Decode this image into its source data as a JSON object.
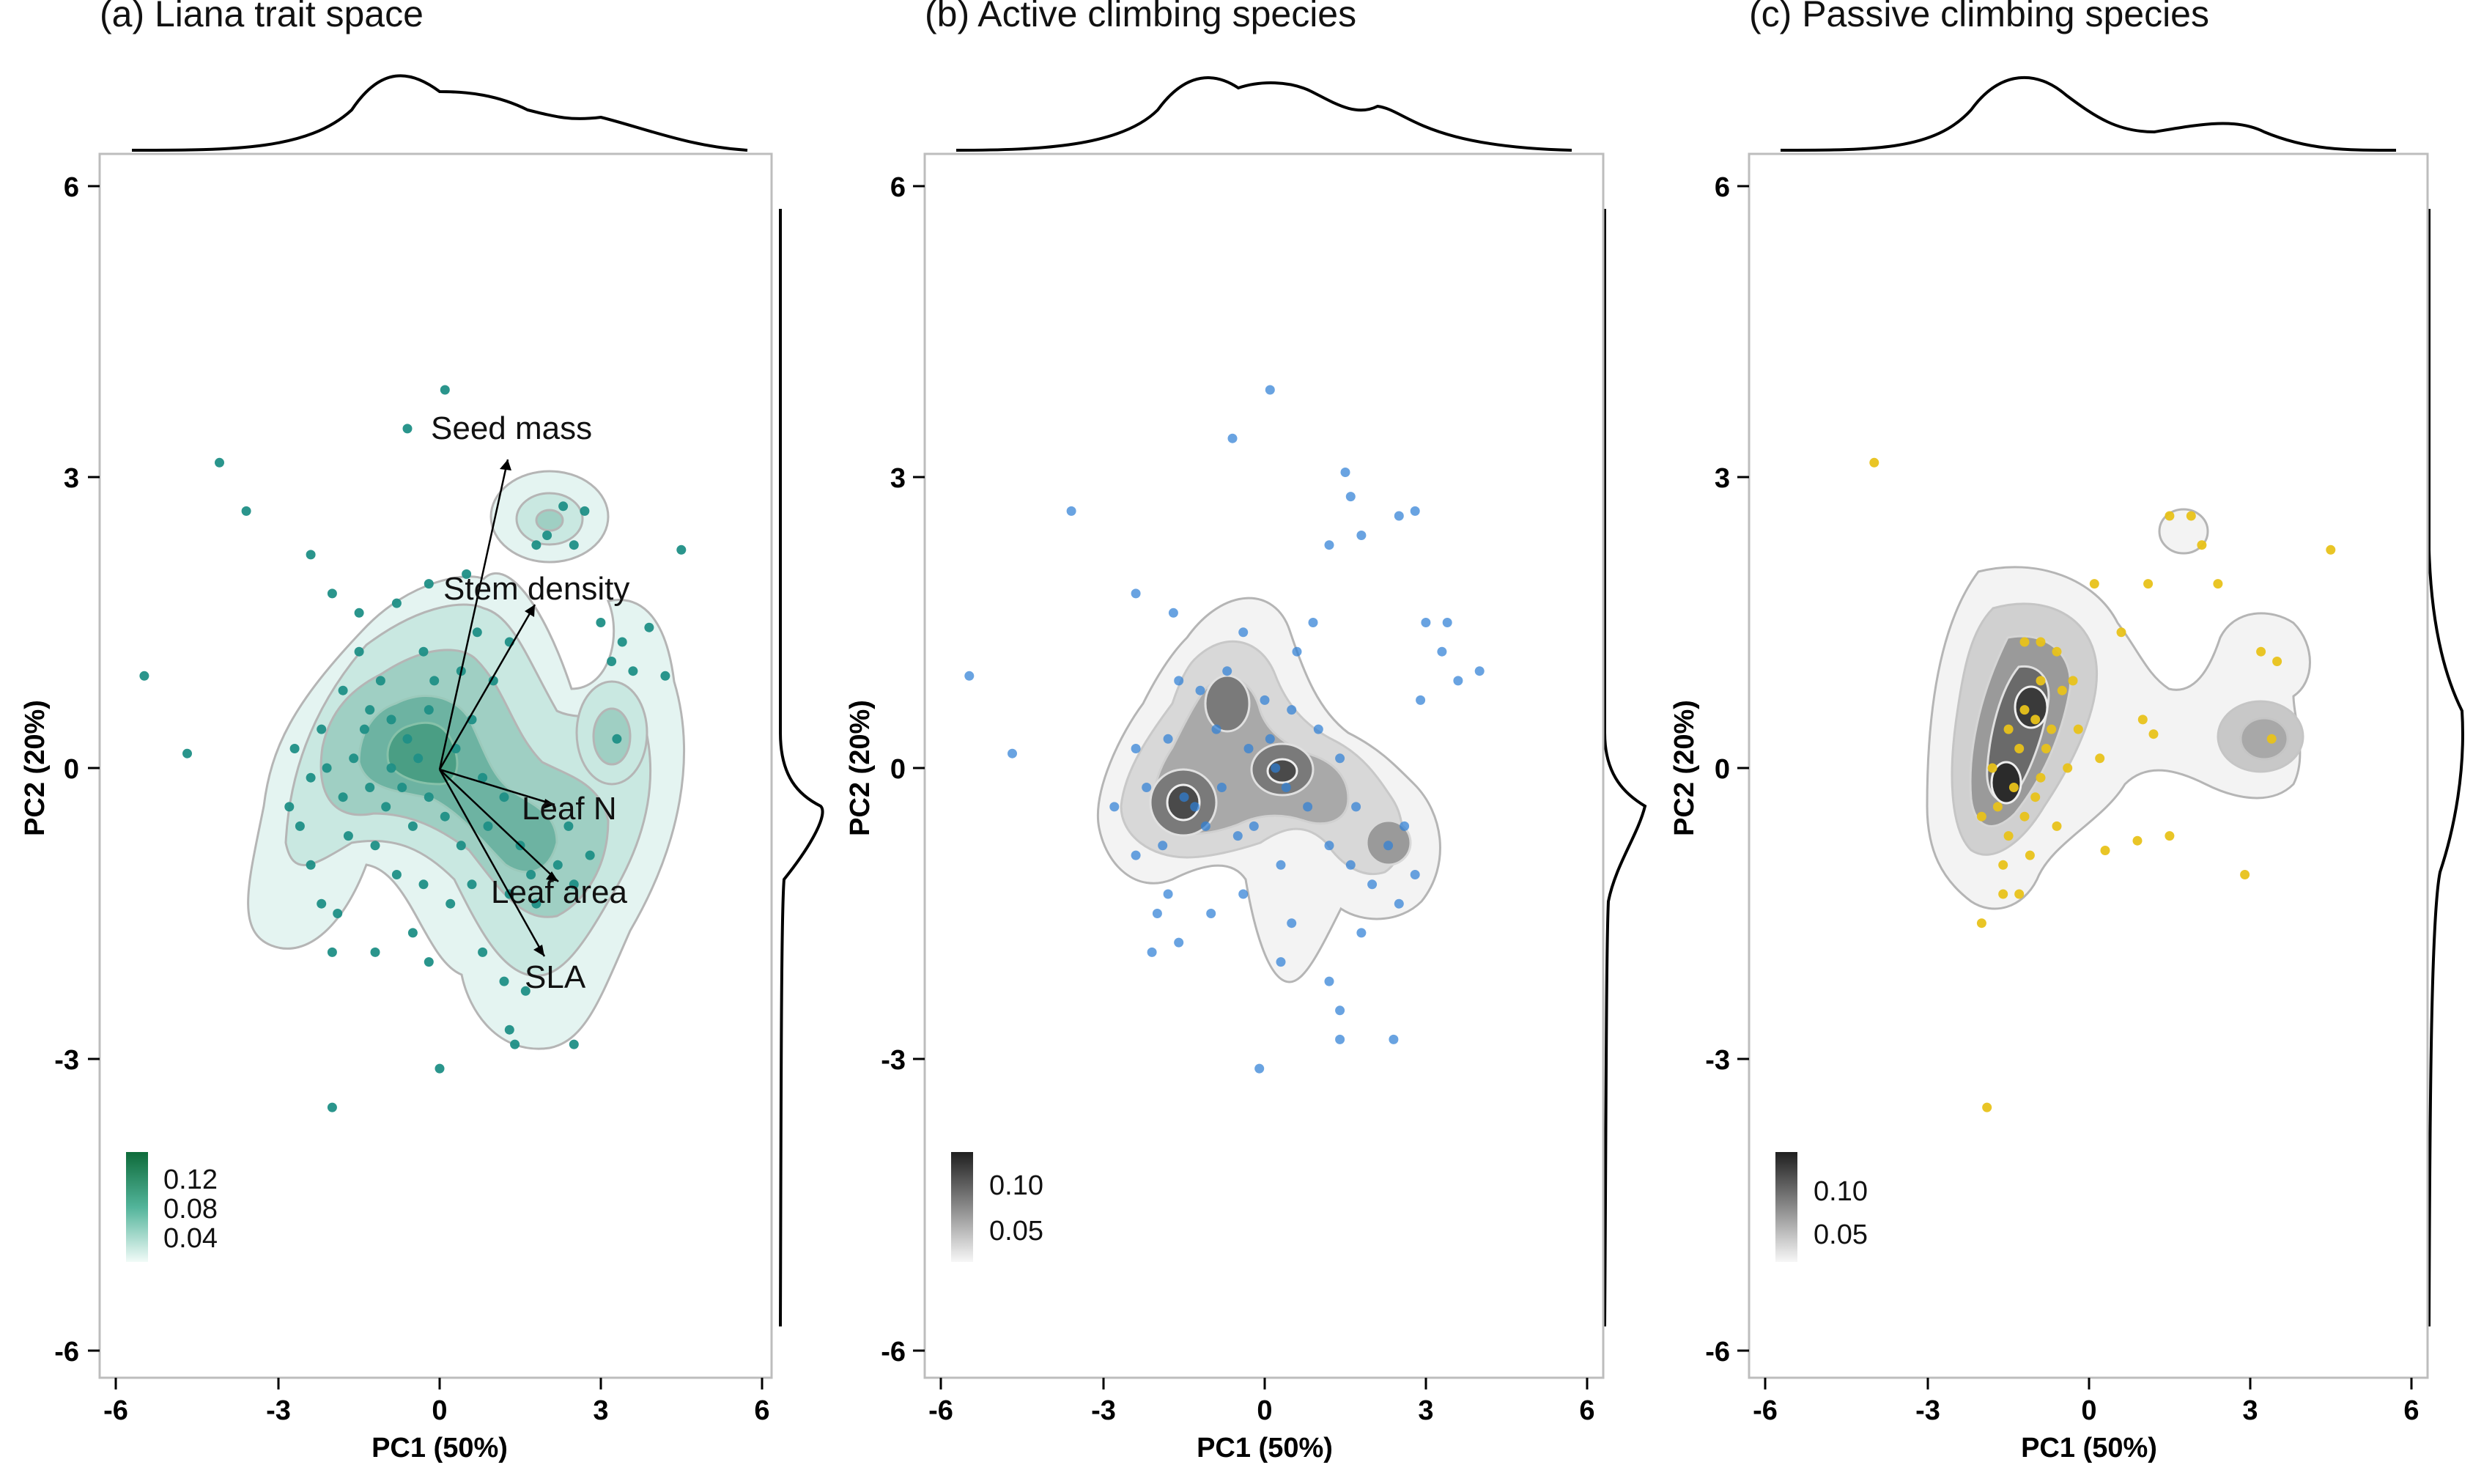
{
  "figure": {
    "panels": [
      {
        "id": "a",
        "title": "(a)  Liana trait space"
      },
      {
        "id": "b",
        "title": "(b)  Active climbing species"
      },
      {
        "id": "c",
        "title": "(c)  Passive climbing species"
      }
    ],
    "xlabel": "PC1 (50%)",
    "ylabel": "PC2 (20%)",
    "ticks": [
      "-6",
      "-3",
      "0",
      "3",
      "6"
    ]
  },
  "colors": {
    "panel_a_points": "#1f8f86",
    "panel_b_points": "#2f7fd6",
    "panel_c_points": "#e8c21a",
    "density_green": "#0e6b3a",
    "density_gray": "#2b2b2b",
    "panel_border": "#bdbdbd",
    "contour": "#b5b5b5"
  },
  "chart_data": [
    {
      "type": "scatter",
      "panel": "(a)  Liana trait space",
      "xlabel": "PC1 (50%)",
      "ylabel": "PC2 (20%)",
      "xlim": [
        -6.3,
        6
      ],
      "ylim": [
        -6.3,
        6.3
      ],
      "grid": false,
      "density_contours": true,
      "legend": {
        "position": "bottom-left",
        "labels": [
          "0.12",
          "0.08",
          "0.04"
        ]
      },
      "loadings": [
        {
          "label": "Seed mass",
          "x": 1.3,
          "y": 3.2
        },
        {
          "label": "Stem density",
          "x": 1.8,
          "y": 1.7
        },
        {
          "label": "Leaf N",
          "x": 2.1,
          "y": -0.5
        },
        {
          "label": "Leaf area",
          "x": 2.2,
          "y": -1.15
        },
        {
          "label": "SLA",
          "x": 2.0,
          "y": -1.9
        }
      ],
      "points": [
        [
          0.1,
          3.9
        ],
        [
          -0.6,
          3.5
        ],
        [
          -4.1,
          3.15
        ],
        [
          -3.6,
          2.65
        ],
        [
          2.3,
          2.7
        ],
        [
          2.7,
          2.65
        ],
        [
          2.0,
          2.4
        ],
        [
          2.5,
          2.3
        ],
        [
          -2.4,
          2.2
        ],
        [
          4.5,
          2.25
        ],
        [
          1.8,
          2.3
        ],
        [
          -2.0,
          1.8
        ],
        [
          -1.5,
          1.6
        ],
        [
          -0.8,
          1.7
        ],
        [
          -0.2,
          1.9
        ],
        [
          0.5,
          2.0
        ],
        [
          3.0,
          1.5
        ],
        [
          3.4,
          1.3
        ],
        [
          3.2,
          1.1
        ],
        [
          3.6,
          1.0
        ],
        [
          4.2,
          0.95
        ],
        [
          3.9,
          1.45
        ],
        [
          -5.5,
          0.95
        ],
        [
          3.3,
          0.3
        ],
        [
          -4.7,
          0.15
        ],
        [
          -2.8,
          -0.4
        ],
        [
          -2.4,
          -1.0
        ],
        [
          -2.2,
          -1.4
        ],
        [
          -1.9,
          -1.5
        ],
        [
          -2.0,
          -1.9
        ],
        [
          -1.2,
          -1.9
        ],
        [
          -0.5,
          -1.7
        ],
        [
          -0.2,
          -2.0
        ],
        [
          0.8,
          -1.9
        ],
        [
          1.2,
          -2.2
        ],
        [
          1.6,
          -2.3
        ],
        [
          1.3,
          -2.7
        ],
        [
          1.4,
          -2.85
        ],
        [
          2.5,
          -2.85
        ],
        [
          0.0,
          -3.1
        ],
        [
          -2.0,
          -3.5
        ],
        [
          -2.6,
          -0.6
        ],
        [
          -2.2,
          0.4
        ],
        [
          -1.8,
          0.8
        ],
        [
          -1.5,
          1.2
        ],
        [
          -1.1,
          0.9
        ],
        [
          -0.9,
          0.5
        ],
        [
          -0.6,
          0.3
        ],
        [
          -0.4,
          0.1
        ],
        [
          -0.2,
          0.6
        ],
        [
          -0.7,
          -0.2
        ],
        [
          -1.0,
          -0.4
        ],
        [
          -1.3,
          -0.2
        ],
        [
          -1.6,
          0.1
        ],
        [
          -1.8,
          -0.3
        ],
        [
          -2.1,
          0.0
        ],
        [
          -0.5,
          -0.6
        ],
        [
          -0.2,
          -0.3
        ],
        [
          0.1,
          -0.5
        ],
        [
          0.3,
          0.2
        ],
        [
          0.6,
          0.5
        ],
        [
          0.8,
          -0.1
        ],
        [
          0.4,
          -0.8
        ],
        [
          0.9,
          -0.6
        ],
        [
          1.2,
          -0.3
        ],
        [
          1.5,
          -0.8
        ],
        [
          1.7,
          -1.1
        ],
        [
          1.3,
          -1.3
        ],
        [
          1.8,
          -1.4
        ],
        [
          2.2,
          -1.0
        ],
        [
          2.5,
          -1.2
        ],
        [
          2.8,
          -0.9
        ],
        [
          2.4,
          -0.6
        ],
        [
          1.0,
          0.9
        ],
        [
          1.3,
          1.3
        ],
        [
          0.7,
          1.4
        ],
        [
          -0.3,
          1.2
        ],
        [
          -1.3,
          0.6
        ],
        [
          -2.4,
          -0.1
        ],
        [
          -2.7,
          0.2
        ],
        [
          -1.2,
          -0.8
        ],
        [
          -0.8,
          -1.1
        ],
        [
          -0.3,
          -1.2
        ],
        [
          0.2,
          -1.4
        ],
        [
          0.6,
          -1.2
        ],
        [
          -1.7,
          -0.7
        ],
        [
          -1.4,
          0.4
        ],
        [
          -0.9,
          0.0
        ],
        [
          -0.1,
          0.9
        ],
        [
          0.4,
          1.0
        ]
      ]
    },
    {
      "type": "scatter",
      "panel": "(b)  Active climbing species",
      "xlabel": "PC1 (50%)",
      "ylabel": "PC2 (20%)",
      "xlim": [
        -6.3,
        6
      ],
      "ylim": [
        -6.3,
        6.3
      ],
      "grid": false,
      "density_contours": true,
      "legend": {
        "position": "bottom-left",
        "labels": [
          "0.10",
          "0.05"
        ]
      },
      "points": [
        [
          0.1,
          3.9
        ],
        [
          -0.6,
          3.4
        ],
        [
          -3.6,
          2.65
        ],
        [
          1.5,
          3.05
        ],
        [
          1.6,
          2.8
        ],
        [
          2.5,
          2.6
        ],
        [
          2.8,
          2.65
        ],
        [
          1.8,
          2.4
        ],
        [
          -2.4,
          1.8
        ],
        [
          -1.7,
          1.6
        ],
        [
          1.2,
          2.3
        ],
        [
          3.0,
          1.5
        ],
        [
          3.4,
          1.5
        ],
        [
          3.3,
          1.2
        ],
        [
          3.6,
          0.9
        ],
        [
          4.0,
          1.0
        ],
        [
          2.9,
          0.7
        ],
        [
          -5.5,
          0.95
        ],
        [
          -4.7,
          0.15
        ],
        [
          -2.8,
          -0.4
        ],
        [
          -2.4,
          -0.9
        ],
        [
          -2.0,
          -1.5
        ],
        [
          -1.6,
          -1.8
        ],
        [
          -1.8,
          -1.3
        ],
        [
          -1.0,
          -1.5
        ],
        [
          -0.4,
          -1.3
        ],
        [
          0.5,
          -1.6
        ],
        [
          1.2,
          -2.2
        ],
        [
          1.4,
          -2.5
        ],
        [
          1.4,
          -2.8
        ],
        [
          0.3,
          -2.0
        ],
        [
          2.4,
          -2.8
        ],
        [
          -0.1,
          -3.1
        ],
        [
          -2.1,
          -1.9
        ],
        [
          -1.3,
          -0.4
        ],
        [
          -1.5,
          -0.3
        ],
        [
          -1.1,
          -0.6
        ],
        [
          -0.9,
          0.4
        ],
        [
          -1.2,
          0.8
        ],
        [
          -0.7,
          1.0
        ],
        [
          -0.3,
          0.2
        ],
        [
          0.2,
          0.0
        ],
        [
          0.4,
          -0.2
        ],
        [
          0.1,
          0.3
        ],
        [
          0.5,
          0.6
        ],
        [
          0.8,
          -0.4
        ],
        [
          1.0,
          0.4
        ],
        [
          1.2,
          -0.8
        ],
        [
          1.6,
          -1.0
        ],
        [
          2.0,
          -1.2
        ],
        [
          2.3,
          -0.8
        ],
        [
          2.6,
          -0.6
        ],
        [
          2.5,
          -1.4
        ],
        [
          1.8,
          -1.7
        ],
        [
          -2.4,
          0.2
        ],
        [
          -2.2,
          -0.2
        ],
        [
          -1.8,
          0.3
        ],
        [
          -1.6,
          0.9
        ],
        [
          -0.5,
          -0.7
        ],
        [
          -0.2,
          -0.6
        ],
        [
          0.0,
          0.7
        ],
        [
          0.6,
          1.2
        ],
        [
          0.9,
          1.5
        ],
        [
          -0.4,
          1.4
        ],
        [
          -1.9,
          -0.8
        ],
        [
          1.4,
          0.1
        ],
        [
          1.7,
          -0.4
        ],
        [
          2.8,
          -1.1
        ],
        [
          0.3,
          -1.0
        ],
        [
          -0.8,
          -0.2
        ]
      ]
    },
    {
      "type": "scatter",
      "panel": "(c)  Passive climbing species",
      "xlabel": "PC1 (50%)",
      "ylabel": "PC2 (20%)",
      "xlim": [
        -6.3,
        6
      ],
      "ylim": [
        -6.3,
        6.3
      ],
      "grid": false,
      "density_contours": true,
      "legend": {
        "position": "bottom-left",
        "labels": [
          "0.10",
          "0.05"
        ]
      },
      "points": [
        [
          -4.0,
          3.15
        ],
        [
          1.5,
          2.6
        ],
        [
          1.9,
          2.6
        ],
        [
          2.1,
          2.3
        ],
        [
          2.4,
          1.9
        ],
        [
          1.1,
          1.9
        ],
        [
          4.5,
          2.25
        ],
        [
          3.2,
          1.2
        ],
        [
          3.5,
          1.1
        ],
        [
          3.4,
          0.3
        ],
        [
          2.9,
          -1.1
        ],
        [
          1.5,
          -0.7
        ],
        [
          0.9,
          -0.75
        ],
        [
          0.3,
          -0.85
        ],
        [
          -2.0,
          -1.6
        ],
        [
          -1.6,
          -1.3
        ],
        [
          -1.3,
          -1.3
        ],
        [
          -1.9,
          -3.5
        ],
        [
          1.0,
          0.5
        ],
        [
          1.2,
          0.35
        ],
        [
          0.1,
          1.9
        ],
        [
          0.6,
          1.4
        ],
        [
          -1.2,
          1.3
        ],
        [
          -0.9,
          1.3
        ],
        [
          -0.6,
          1.2
        ],
        [
          -0.9,
          0.9
        ],
        [
          -1.2,
          0.6
        ],
        [
          -0.7,
          0.4
        ],
        [
          -0.4,
          0.0
        ],
        [
          -0.9,
          -0.1
        ],
        [
          -1.4,
          -0.2
        ],
        [
          -1.7,
          -0.4
        ],
        [
          -1.5,
          -0.7
        ],
        [
          -1.2,
          -0.5
        ],
        [
          -1.0,
          -0.3
        ],
        [
          -1.8,
          0.0
        ],
        [
          -1.3,
          0.2
        ],
        [
          -1.0,
          0.5
        ],
        [
          -0.5,
          0.8
        ],
        [
          -0.2,
          0.4
        ],
        [
          -1.6,
          -1.0
        ],
        [
          -1.1,
          -0.9
        ],
        [
          -0.6,
          -0.6
        ],
        [
          -0.8,
          0.2
        ],
        [
          -1.5,
          0.4
        ],
        [
          -0.3,
          0.9
        ],
        [
          0.2,
          0.1
        ],
        [
          -2.0,
          -0.5
        ]
      ]
    }
  ]
}
